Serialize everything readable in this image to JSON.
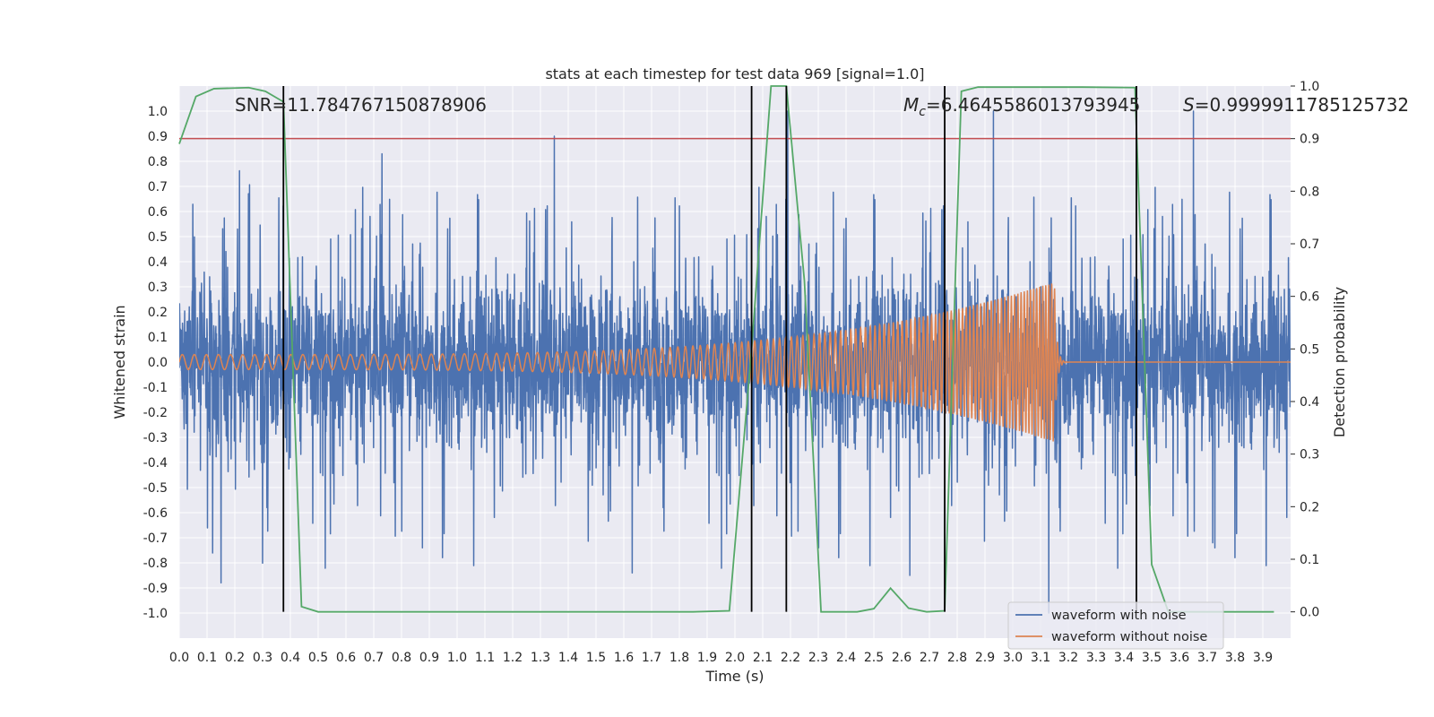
{
  "chart_data": {
    "type": "line",
    "title": "stats at each timestep for test data 969 [signal=1.0]",
    "xlabel": "Time (s)",
    "ylabel": "Whitened strain",
    "y2label": "Detection probability",
    "xlim": [
      0.0,
      4.0
    ],
    "ylim": [
      -1.1,
      1.1
    ],
    "y2lim": [
      -0.05,
      1.0
    ],
    "grid": true,
    "xticks": [
      "0.0",
      "0.1",
      "0.2",
      "0.3",
      "0.4",
      "0.5",
      "0.6",
      "0.7",
      "0.8",
      "0.9",
      "1.0",
      "1.1",
      "1.2",
      "1.3",
      "1.4",
      "1.5",
      "1.6",
      "1.7",
      "1.8",
      "1.9",
      "2.0",
      "2.1",
      "2.2",
      "2.3",
      "2.4",
      "2.5",
      "2.6",
      "2.7",
      "2.8",
      "2.9",
      "3.0",
      "3.1",
      "3.2",
      "3.3",
      "3.4",
      "3.5",
      "3.6",
      "3.7",
      "3.8",
      "3.9"
    ],
    "yticks": [
      "-1.0",
      "-0.9",
      "-0.8",
      "-0.7",
      "-0.6",
      "-0.5",
      "-0.4",
      "-0.3",
      "-0.2",
      "-0.1",
      "0.0",
      "0.1",
      "0.2",
      "0.3",
      "0.4",
      "0.5",
      "0.6",
      "0.7",
      "0.8",
      "0.9",
      "1.0"
    ],
    "y2ticks": [
      "0.0",
      "0.1",
      "0.2",
      "0.3",
      "0.4",
      "0.5",
      "0.6",
      "0.7",
      "0.8",
      "0.9",
      "1.0"
    ],
    "threshold": {
      "value": 0.9,
      "axis": "y2",
      "color": "#c44e52"
    },
    "vlines": {
      "x": [
        0.375,
        2.06,
        2.185,
        2.755,
        3.445
      ],
      "y2range": [
        0.0,
        1.0
      ],
      "color": "#000000"
    },
    "annotations": {
      "snr": "SNR=11.784767150878906",
      "mc_symbol": "M",
      "mc_sub": "c",
      "mc_value": "=6.4645586013793945",
      "s_symbol": "S",
      "s_value": "=0.9999911785125732"
    },
    "legend": {
      "position": "lower-right",
      "entries": [
        {
          "label": "waveform with noise",
          "color": "#4c72b0"
        },
        {
          "label": "waveform without noise",
          "color": "#dd8452"
        }
      ]
    },
    "series": [
      {
        "name": "waveform with noise",
        "color": "#4c72b0",
        "axis": "y",
        "noise": {
          "samples": 4096,
          "core_amplitude": 0.15,
          "typical_peak": 0.45,
          "max": 1.0,
          "min": -1.0
        },
        "peaks": [
          {
            "x": 0.15,
            "y": -0.88
          },
          {
            "x": 0.73,
            "y": 0.83
          },
          {
            "x": 1.35,
            "y": 0.9
          },
          {
            "x": 1.63,
            "y": -0.84
          },
          {
            "x": 2.19,
            "y": 1.0
          },
          {
            "x": 2.63,
            "y": -0.85
          },
          {
            "x": 2.93,
            "y": 1.0
          },
          {
            "x": 3.13,
            "y": -1.0
          },
          {
            "x": 3.65,
            "y": 1.0
          },
          {
            "x": 3.72,
            "y": -0.72
          }
        ]
      },
      {
        "name": "waveform without noise",
        "color": "#dd8452",
        "axis": "y",
        "chirp": {
          "t_start": 0.0,
          "t_merge": 3.15,
          "f_start": 23,
          "f_end": 95,
          "amp_start": 0.03,
          "amp_end": 0.32,
          "ringdown_end": 3.2
        }
      },
      {
        "name": "detection probability",
        "color": "#55a868",
        "axis": "y2",
        "x": [
          0.0,
          0.06,
          0.125,
          0.25,
          0.31,
          0.375,
          0.44,
          0.5,
          1.0,
          1.5,
          1.85,
          1.98,
          2.06,
          2.13,
          2.185,
          2.25,
          2.31,
          2.375,
          2.44,
          2.5,
          2.56,
          2.625,
          2.69,
          2.755,
          2.815,
          2.875,
          3.0,
          3.25,
          3.44,
          3.5,
          3.56,
          3.625,
          3.75,
          3.94
        ],
        "y": [
          0.89,
          0.98,
          0.995,
          0.997,
          0.99,
          0.97,
          0.01,
          0.0,
          0.0,
          0.0,
          0.0,
          0.002,
          0.5,
          1.0,
          1.0,
          0.63,
          0.0,
          0.0,
          0.0,
          0.006,
          0.045,
          0.007,
          0.0,
          0.002,
          0.99,
          0.998,
          0.998,
          0.998,
          0.997,
          0.09,
          0.0,
          0.0,
          0.0,
          0.0
        ]
      }
    ]
  }
}
